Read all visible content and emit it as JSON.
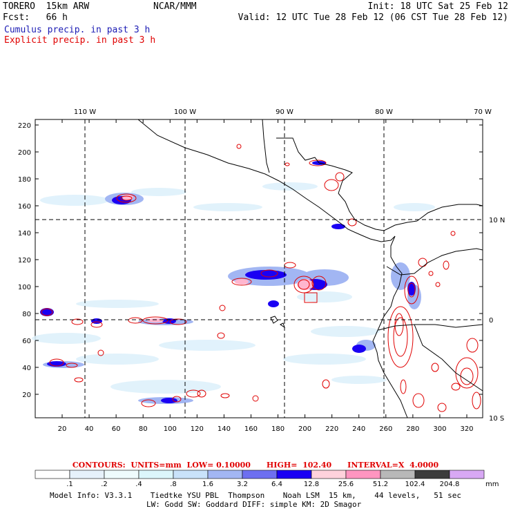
{
  "header": {
    "model": "TORERO  15km ARW",
    "forecast": "Fcst:   66 h",
    "org": "NCAR/MMM",
    "init": "Init: 18 UTC Sat 25 Feb 12",
    "valid": "Valid: 12 UTC Tue 28 Feb 12 (06 CST Tue 28 Feb 12)"
  },
  "legend": {
    "cumulus": "Cumulus precip. in past 3 h",
    "explicit": "Explicit precip. in past 3 h"
  },
  "colors": {
    "cumulus_text": "#1c1cb4",
    "explicit": "#e00000",
    "coastline": "#000000",
    "grid": "#000000"
  },
  "map": {
    "x_ticks": [
      "20",
      "40",
      "60",
      "80",
      "100",
      "120",
      "140",
      "160",
      "180",
      "200",
      "220",
      "240",
      "260",
      "280",
      "300",
      "320"
    ],
    "y_ticks": [
      "20",
      "40",
      "60",
      "80",
      "100",
      "120",
      "140",
      "160",
      "180",
      "200",
      "220"
    ],
    "lon_labels": [
      "110 W",
      "100 W",
      "90 W",
      "80 W",
      "70 W"
    ],
    "lat_labels": [
      "10 N",
      "0",
      "10 S"
    ]
  },
  "contours": {
    "line": "CONTOURS:  UNITS=mm  LOW= 0.10000      HIGH=  102.40      INTERVAL=X  4.0000"
  },
  "colorbar": {
    "labels": [
      ".1",
      ".2",
      ".4",
      ".8",
      "1.6",
      "3.2",
      "6.4",
      "12.8",
      "25.6",
      "51.2",
      "102.4",
      "204.8"
    ],
    "unit": "mm",
    "colors": [
      "#ffffff",
      "#e6f1fb",
      "#eefbfd",
      "#dcf6fb",
      "#c9e2fa",
      "#a2b6f3",
      "#6d6ff0",
      "#1a00f3",
      "#ffd2dc",
      "#ff95c0",
      "#b8b8b8",
      "#3c3c3c",
      "#d8a8f4"
    ]
  },
  "footer": {
    "line1": "Model Info: V3.3.1    Tiedtke YSU PBL  Thompson    Noah LSM  15 km,    44 levels,   51 sec",
    "line2": "LW: Godd SW: Goddard DIFF: simple KM: 2D Smagor"
  }
}
